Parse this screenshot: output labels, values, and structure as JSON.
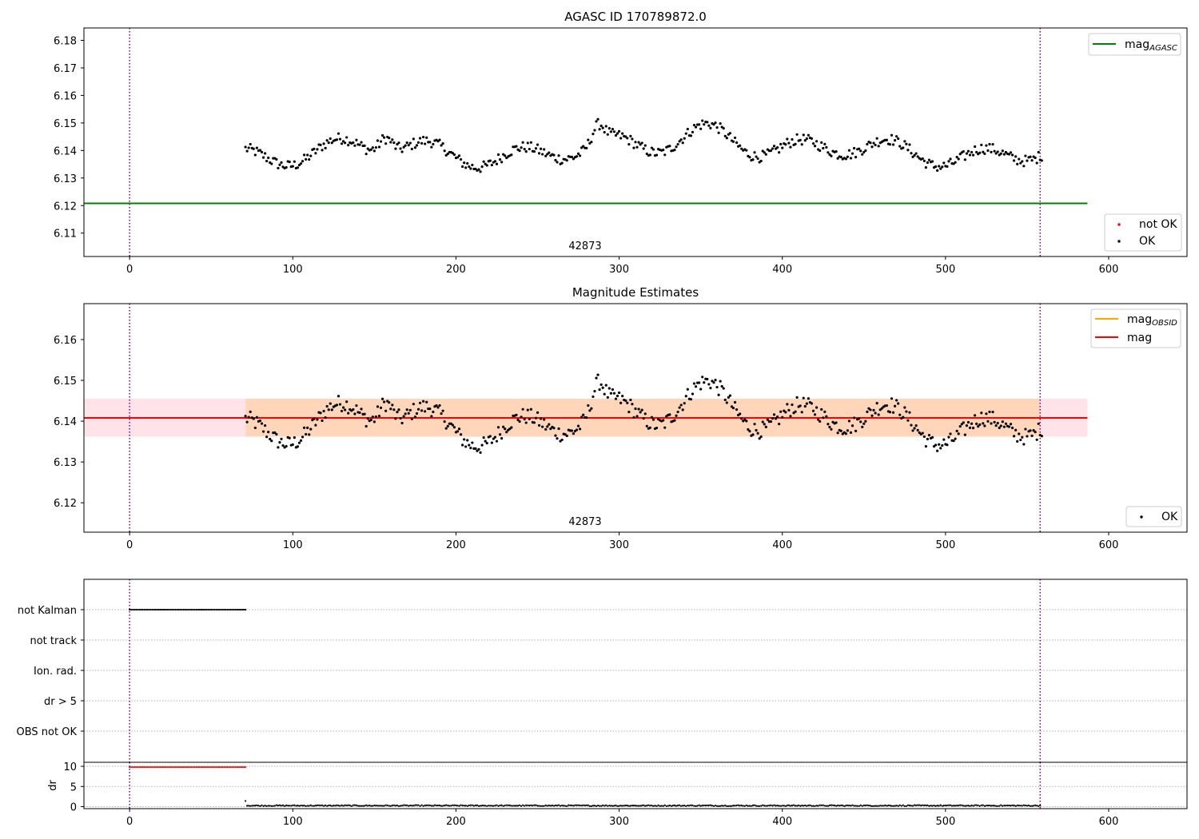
{
  "chart_data": [
    {
      "type": "scatter",
      "title": "AGASC ID 170789872.0",
      "xlabel": "",
      "ylabel": "",
      "xlim": [
        -28,
        648
      ],
      "ylim": [
        6.1015,
        6.1845
      ],
      "xticks": [
        0,
        100,
        200,
        300,
        400,
        500,
        600
      ],
      "yticks": [
        6.11,
        6.12,
        6.13,
        6.14,
        6.15,
        6.16,
        6.17,
        6.18
      ],
      "ytick_labels": [
        "6.11",
        "6.12",
        "6.13",
        "6.14",
        "6.15",
        "6.16",
        "6.17",
        "6.18"
      ],
      "xtick_labels": [
        "0",
        "100",
        "200",
        "300",
        "400",
        "500",
        "600"
      ],
      "vlines": [
        0,
        558
      ],
      "hline": {
        "y": 6.1208,
        "x_range": [
          -28,
          587
        ],
        "color": "#008000"
      },
      "annotation": {
        "text": "42873",
        "x": 280
      },
      "legend_top": {
        "position": "top-right",
        "entries": [
          {
            "label": "mag",
            "sub": "AGASC",
            "color": "#008000"
          }
        ]
      },
      "legend_bottom": {
        "position": "lower-right",
        "entries": [
          {
            "label": "not OK",
            "color": "#ff0000"
          },
          {
            "label": "OK",
            "color": "#000000"
          }
        ]
      },
      "series": [
        {
          "name": "OK",
          "x_start": 71,
          "x_end": 559,
          "color": "#000000"
        }
      ]
    },
    {
      "type": "scatter",
      "title": "Magnitude Estimates",
      "xlabel": "",
      "ylabel": "",
      "xlim": [
        -28,
        648
      ],
      "ylim": [
        6.1128,
        6.1688
      ],
      "xticks": [
        0,
        100,
        200,
        300,
        400,
        500,
        600
      ],
      "xtick_labels": [
        "0",
        "100",
        "200",
        "300",
        "400",
        "500",
        "600"
      ],
      "yticks": [
        6.12,
        6.13,
        6.14,
        6.15,
        6.16
      ],
      "ytick_labels": [
        "6.12",
        "6.13",
        "6.14",
        "6.15",
        "6.16"
      ],
      "vlines": [
        0,
        558
      ],
      "mag_line": {
        "y": 6.1408,
        "x_range": [
          -28,
          587
        ],
        "color": "#ff0000"
      },
      "band_mag": {
        "y_range": [
          6.1362,
          6.1455
        ],
        "x_range": [
          -28,
          587
        ],
        "color": "#ffc0cb"
      },
      "band_obsid": {
        "y_range": [
          6.1362,
          6.1455
        ],
        "x_range": [
          71,
          558
        ],
        "color": "#ffa500"
      },
      "annotation": {
        "text": "42873",
        "x": 280
      },
      "legend_top": {
        "position": "top-right",
        "entries": [
          {
            "label": "mag",
            "sub": "OBSID",
            "color": "#ffa500"
          },
          {
            "label": "mag",
            "color": "#ff0000"
          }
        ]
      },
      "legend_bottom": {
        "position": "lower-right",
        "entries": [
          {
            "label": "OK",
            "color": "#000000"
          }
        ]
      },
      "series": [
        {
          "name": "OK",
          "x_start": 71,
          "x_end": 559,
          "color": "#000000"
        }
      ]
    },
    {
      "type": "scatter",
      "title": "",
      "xlim": [
        -28,
        648
      ],
      "categories": [
        "not Kalman",
        "not track",
        "Ion. rad.",
        "dr > 5",
        "OBS not OK"
      ],
      "flag_series": [
        {
          "category": "not Kalman",
          "x_range": [
            0,
            71
          ],
          "color": "#000000"
        }
      ],
      "vlines": [
        0,
        558
      ]
    },
    {
      "type": "scatter",
      "title": "",
      "xlabel": "",
      "ylabel": "dr",
      "xlim": [
        -28,
        648
      ],
      "ylim": [
        -0.5,
        11
      ],
      "yticks": [
        0,
        5,
        10
      ],
      "ytick_labels": [
        "0",
        "5",
        "10"
      ],
      "xticks": [
        0,
        100,
        200,
        300,
        400,
        500,
        600
      ],
      "xtick_labels": [
        "0",
        "100",
        "200",
        "300",
        "400",
        "500",
        "600"
      ],
      "vlines": [
        0,
        558
      ],
      "series": [
        {
          "name": "dr not OK",
          "x_range": [
            0,
            71
          ],
          "y": 9.8,
          "color": "#ff0000"
        },
        {
          "name": "dr OK",
          "x_range": [
            71,
            558
          ],
          "y": 0.25,
          "color": "#000000"
        }
      ]
    }
  ]
}
